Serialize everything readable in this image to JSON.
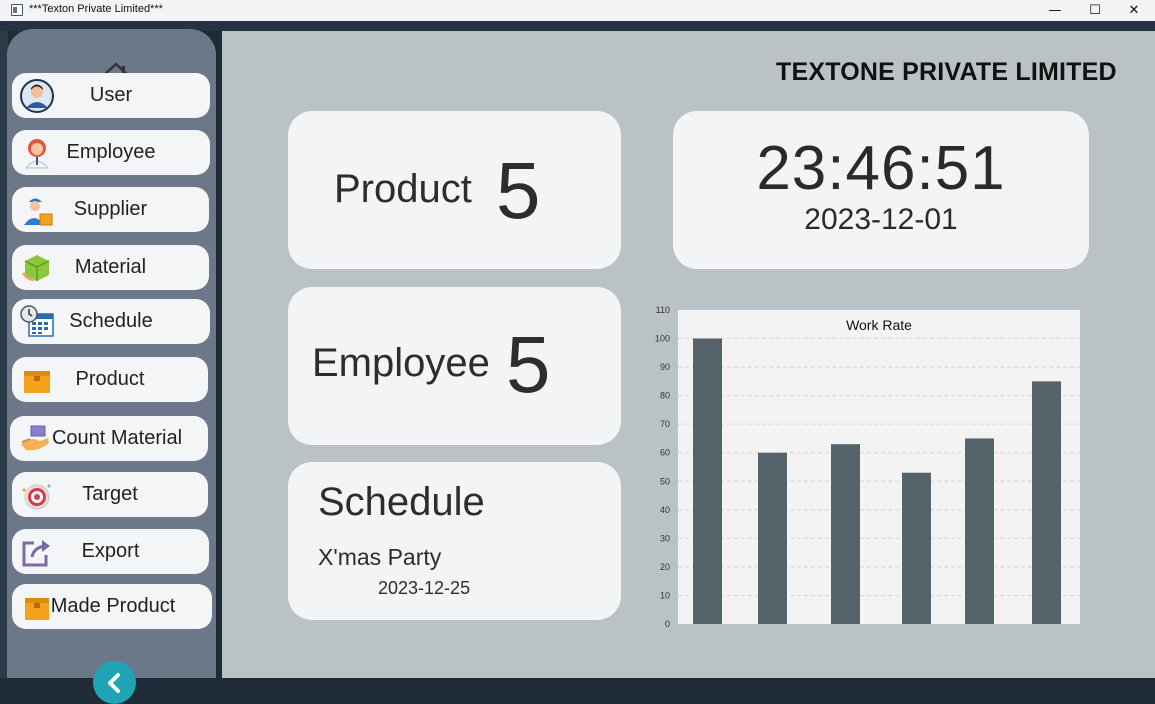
{
  "window": {
    "title": "***Texton Private Limited***",
    "minimize_glyph": "—",
    "maximize_glyph": "☐",
    "close_glyph": "✕"
  },
  "sidebar": {
    "items": [
      {
        "label": "User",
        "icon": "user-avatar-icon"
      },
      {
        "label": "Employee",
        "icon": "employee-icon"
      },
      {
        "label": "Supplier",
        "icon": "supplier-icon"
      },
      {
        "label": "Material",
        "icon": "material-box-icon"
      },
      {
        "label": "Schedule",
        "icon": "calendar-clock-icon"
      },
      {
        "label": "Product",
        "icon": "product-box-icon"
      },
      {
        "label": "Count Material",
        "icon": "hand-box-icon"
      },
      {
        "label": "Target",
        "icon": "target-icon"
      },
      {
        "label": "Export",
        "icon": "export-icon"
      },
      {
        "label": "Made Product",
        "icon": "made-product-icon"
      }
    ]
  },
  "header": {
    "company": "TEXTONE PRIVATE LIMITED"
  },
  "cards": {
    "product": {
      "label": "Product",
      "value": "5"
    },
    "employee": {
      "label": "Employee",
      "value": "5"
    },
    "clock": {
      "time": "23:46:51",
      "date": "2023-12-01"
    },
    "schedule": {
      "title": "Schedule",
      "event": "X'mas Party",
      "date": "2023-12-25"
    }
  },
  "colors": {
    "bar": "#546369",
    "accent": "#1fa3b5"
  },
  "chart_data": {
    "type": "bar",
    "title": "Work Rate",
    "xlabel": "",
    "ylabel": "",
    "categories": [
      "",
      "",
      "",
      "",
      "",
      ""
    ],
    "values": [
      100,
      60,
      63,
      53,
      65,
      85
    ],
    "ylim": [
      0,
      110
    ],
    "yticks": [
      "0",
      "10",
      "20",
      "30",
      "40",
      "50",
      "60",
      "70",
      "80",
      "90",
      "100",
      "110"
    ],
    "grid": true,
    "legend": "none"
  }
}
